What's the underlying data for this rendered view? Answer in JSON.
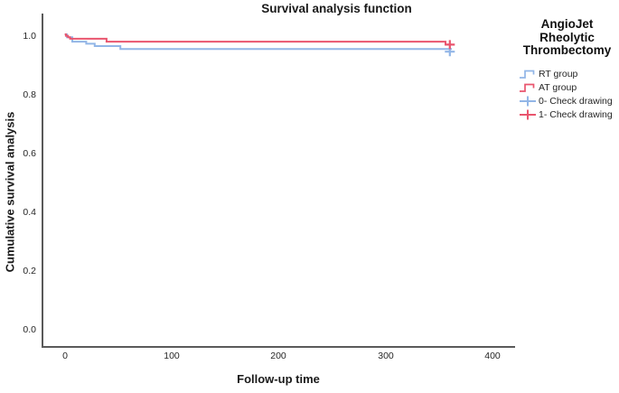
{
  "title": "Survival analysis function",
  "axes": {
    "y_label": "Cumulative survival analysis",
    "x_label": "Follow-up time",
    "y_ticks": [
      "1.0",
      "0.8",
      "0.6",
      "0.4",
      "0.2",
      "0.0"
    ],
    "x_ticks": [
      "0",
      "100",
      "200",
      "300",
      "400"
    ]
  },
  "legend": {
    "title_lines": [
      "AngioJet",
      "Rheolytic",
      "Thrombectomy"
    ],
    "items": [
      {
        "label": "RT group",
        "symbol": "step-line",
        "color": "#92B6E7"
      },
      {
        "label": "AT group",
        "symbol": "step-line",
        "color": "#E9556E"
      },
      {
        "label": "0- Check drawing",
        "symbol": "plus-marker",
        "color": "#92B6E7"
      },
      {
        "label": "1- Check drawing",
        "symbol": "plus-marker",
        "color": "#E9556E"
      }
    ]
  },
  "colors": {
    "rt_blue": "#92B6E7",
    "at_red": "#E9556E",
    "axis": "#5a5a5a",
    "text": "#1a1a1a"
  },
  "chart_data": {
    "type": "line",
    "subtype": "kaplan-meier-step-function",
    "title": "Survival analysis function",
    "xlabel": "Follow-up time",
    "ylabel": "Cumulative survival analysis",
    "xlim": [
      -22,
      420
    ],
    "ylim": [
      -0.06,
      1.06
    ],
    "x_ticks": [
      0,
      100,
      200,
      300,
      400
    ],
    "y_ticks": [
      0.0,
      0.2,
      0.4,
      0.6,
      0.8,
      1.0
    ],
    "grid": false,
    "legend_position": "right-outside",
    "series": [
      {
        "name": "RT group",
        "color": "#92B6E7",
        "points": [
          [
            0,
            1.0
          ],
          [
            2,
            0.99
          ],
          [
            7,
            0.975
          ],
          [
            20,
            0.968
          ],
          [
            28,
            0.96
          ],
          [
            52,
            0.95
          ],
          [
            362,
            0.95
          ]
        ],
        "censored": [
          [
            360,
            0.941
          ]
        ]
      },
      {
        "name": "AT group",
        "color": "#E9556E",
        "points": [
          [
            0,
            1.0
          ],
          [
            1,
            0.995
          ],
          [
            3,
            0.99
          ],
          [
            5,
            0.985
          ],
          [
            39,
            0.975
          ],
          [
            356,
            0.965
          ],
          [
            362,
            0.965
          ]
        ],
        "censored": [
          [
            360,
            0.965
          ]
        ]
      }
    ]
  }
}
